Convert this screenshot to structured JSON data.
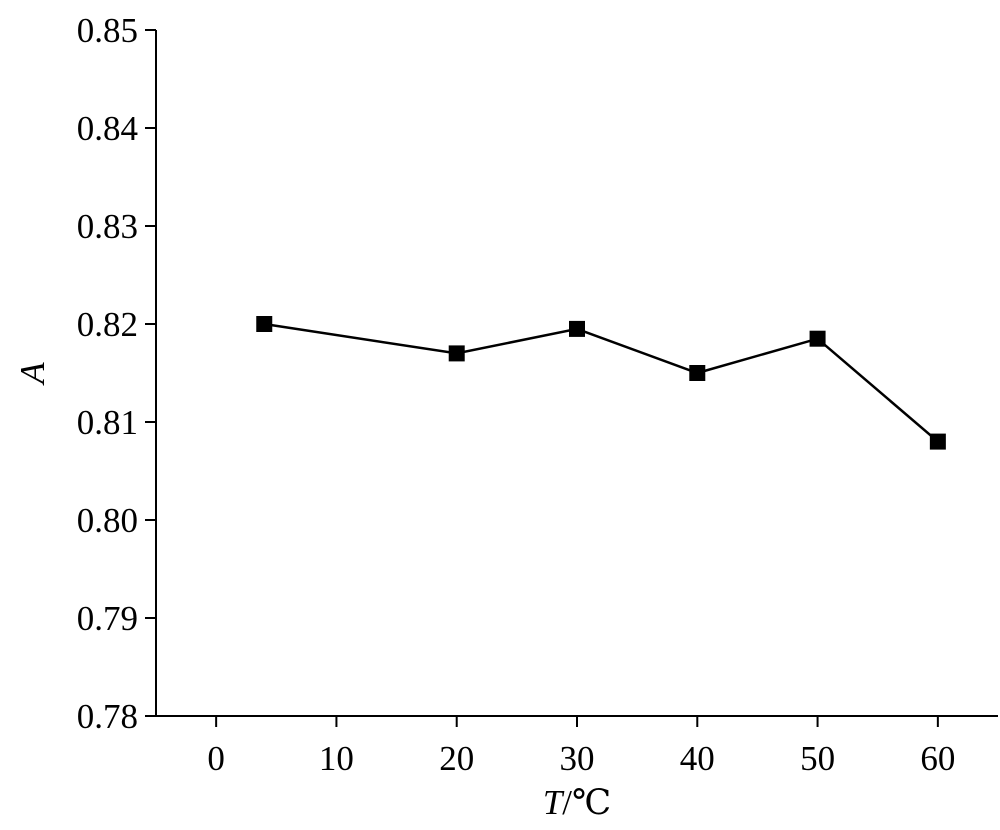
{
  "chart_data": {
    "type": "line",
    "title": "",
    "xlabel_var": "T",
    "xlabel_unit": "/℃",
    "ylabel": "A",
    "xlim": [
      -5,
      65
    ],
    "ylim": [
      0.78,
      0.85
    ],
    "xticks": [
      0,
      10,
      20,
      30,
      40,
      50,
      60
    ],
    "xtick_labels": [
      "0",
      "10",
      "20",
      "30",
      "40",
      "50",
      "60"
    ],
    "yticks": [
      0.78,
      0.79,
      0.8,
      0.81,
      0.82,
      0.83,
      0.84,
      0.85
    ],
    "ytick_labels": [
      "0.78",
      "0.79",
      "0.80",
      "0.81",
      "0.82",
      "0.83",
      "0.84",
      "0.85"
    ],
    "grid": false,
    "legend": "none",
    "series": [
      {
        "marker": "square",
        "color": "#000000",
        "x": [
          4,
          20,
          30,
          40,
          50,
          60
        ],
        "y": [
          0.82,
          0.817,
          0.8195,
          0.815,
          0.8185,
          0.808
        ]
      }
    ]
  }
}
